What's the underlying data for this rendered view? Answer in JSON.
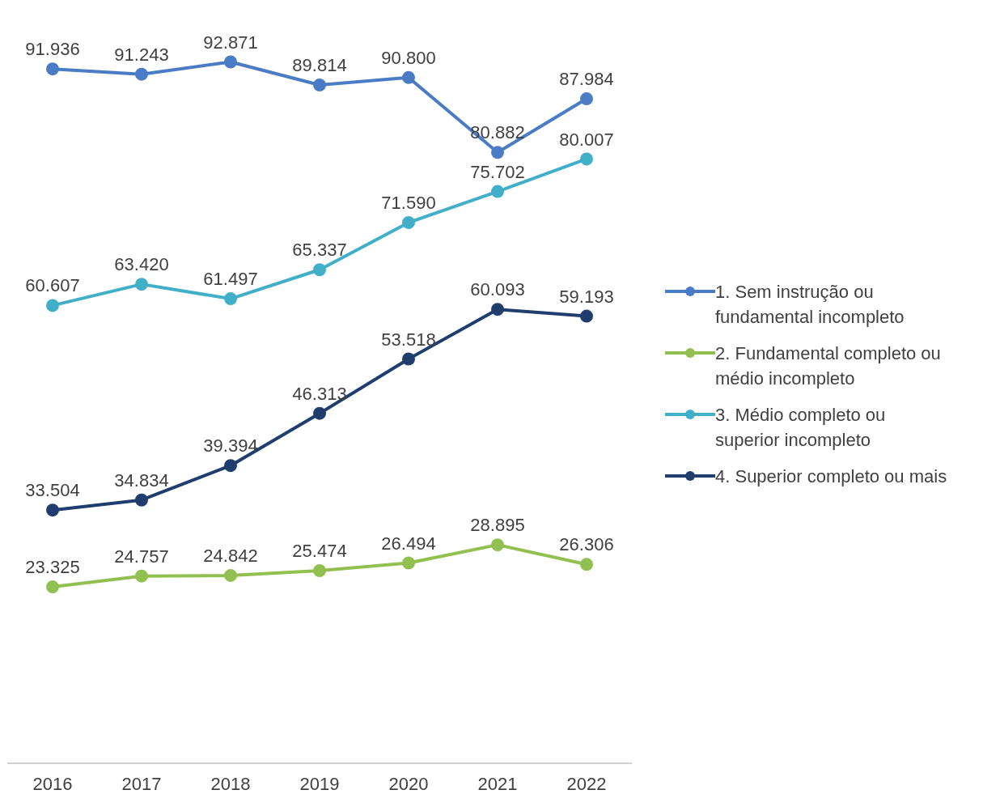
{
  "chart_data": {
    "type": "line",
    "categories": [
      "2016",
      "2017",
      "2018",
      "2019",
      "2020",
      "2021",
      "2022"
    ],
    "tick_labels": "x",
    "grid": false,
    "legend": "right",
    "marker": "circle",
    "line_style": "solid",
    "series": [
      {
        "name": "1. Sem instrução ou fundamental incompleto",
        "color": "#4a7cc6",
        "values": [
          91936,
          91243,
          92871,
          89814,
          90800,
          80882,
          87984
        ],
        "value_labels": [
          "91.936",
          "91.243",
          "92.871",
          "89.814",
          "90.800",
          "80.882",
          "87.984"
        ]
      },
      {
        "name": "2. Fundamental completo ou médio incompleto",
        "color": "#92c050",
        "values": [
          23325,
          24757,
          24842,
          25474,
          26494,
          28895,
          26306
        ],
        "value_labels": [
          "23.325",
          "24.757",
          "24.842",
          "25.474",
          "26.494",
          "28.895",
          "26.306"
        ]
      },
      {
        "name": "3. Médio completo ou superior incompleto",
        "color": "#41afc8",
        "values": [
          60607,
          63420,
          61497,
          65337,
          71590,
          75702,
          80007
        ],
        "value_labels": [
          "60.607",
          "63.420",
          "61.497",
          "65.337",
          "71.590",
          "75.702",
          "80.007"
        ]
      },
      {
        "name": "4. Superior completo ou mais",
        "color": "#1f3e6e",
        "values": [
          33504,
          34834,
          39394,
          46313,
          53518,
          60093,
          59193
        ],
        "value_labels": [
          "33.504",
          "34.834",
          "39.394",
          "46.313",
          "53.518",
          "60.093",
          "59.193"
        ]
      }
    ]
  }
}
